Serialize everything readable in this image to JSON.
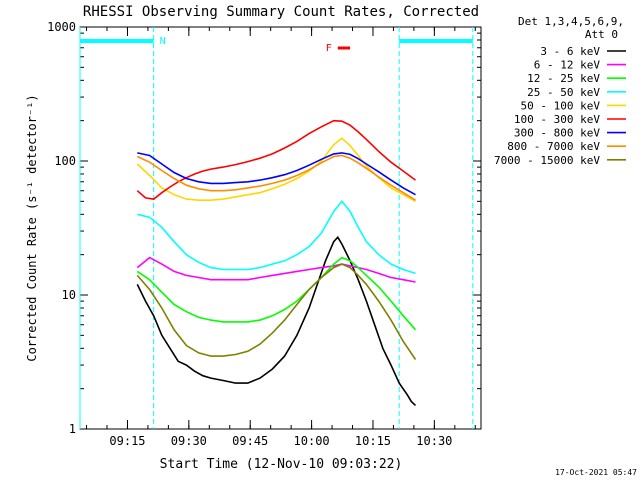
{
  "chart_data": {
    "type": "line",
    "title": "RHESSI Observing Summary Count Rates, Corrected",
    "xlabel": "Start Time (12-Nov-10 09:03:22)",
    "ylabel": "Corrected Count Rate (s⁻¹ detector⁻¹)",
    "yscale": "log",
    "ylim": [
      1,
      1000
    ],
    "xlim_minutes": [
      0,
      98
    ],
    "x_ticks": [
      {
        "label": "09:15",
        "minutes": 11.6
      },
      {
        "label": "09:30",
        "minutes": 26.6
      },
      {
        "label": "09:45",
        "minutes": 41.6
      },
      {
        "label": "10:00",
        "minutes": 56.6
      },
      {
        "label": "10:15",
        "minutes": 71.6
      },
      {
        "label": "10:30",
        "minutes": 86.6
      }
    ],
    "y_ticks": [
      {
        "label": "1",
        "value": 1
      },
      {
        "label": "10",
        "value": 10
      },
      {
        "label": "100",
        "value": 100
      },
      {
        "label": "1000",
        "value": 1000
      }
    ],
    "legend_header": [
      "Det 1,3,4,5,6,9,",
      "Att 0"
    ],
    "legend_placement": "right",
    "annotations": [
      {
        "label": "N",
        "color": "#00ffff"
      },
      {
        "label": "F",
        "color": "#ff0000"
      }
    ],
    "night_intervals_minutes": [
      [
        0,
        18
      ],
      [
        78,
        96
      ]
    ],
    "flare_interval_minutes": [
      63,
      66
    ],
    "timestamp": "17-Oct-2021 05:47",
    "series": [
      {
        "name": "3 - 6 keV",
        "color": "#000000",
        "x": [
          14,
          16,
          18,
          20,
          22,
          24,
          26,
          28,
          30,
          32,
          35,
          38,
          41,
          44,
          47,
          50,
          53,
          56,
          58,
          60,
          62,
          63,
          64,
          66,
          68,
          70,
          72,
          74,
          76,
          78,
          80,
          81,
          82
        ],
        "y": [
          12,
          9,
          7,
          5,
          4,
          3.2,
          3,
          2.7,
          2.5,
          2.4,
          2.3,
          2.2,
          2.2,
          2.4,
          2.8,
          3.5,
          5,
          8,
          12,
          18,
          25,
          27,
          24,
          18,
          13,
          9,
          6,
          4,
          3,
          2.2,
          1.8,
          1.6,
          1.5
        ]
      },
      {
        "name": "6 - 12 keV",
        "color": "#ff00ff",
        "x": [
          14,
          17,
          20,
          23,
          26,
          29,
          32,
          35,
          38,
          41,
          44,
          47,
          50,
          53,
          56,
          59,
          62,
          64,
          66,
          68,
          70,
          73,
          76,
          79,
          82
        ],
        "y": [
          16,
          19,
          17,
          15,
          14,
          13.5,
          13,
          13,
          13,
          13,
          13.5,
          14,
          14.5,
          15,
          15.5,
          16,
          16.5,
          17,
          16.5,
          16,
          15.5,
          14.5,
          13.5,
          13,
          12.5
        ]
      },
      {
        "name": "12 - 25 keV",
        "color": "#00ff00",
        "x": [
          14,
          17,
          20,
          23,
          26,
          29,
          32,
          35,
          38,
          41,
          44,
          47,
          50,
          53,
          56,
          59,
          62,
          64,
          66,
          68,
          70,
          73,
          76,
          79,
          82
        ],
        "y": [
          15,
          13,
          10.5,
          8.5,
          7.5,
          6.8,
          6.5,
          6.3,
          6.3,
          6.3,
          6.5,
          7,
          7.8,
          9,
          11,
          13.5,
          17,
          19,
          18,
          16,
          14,
          11.5,
          9,
          7,
          5.5
        ]
      },
      {
        "name": "25 - 50 keV",
        "color": "#00ffff",
        "x": [
          14,
          17,
          20,
          23,
          26,
          29,
          32,
          35,
          38,
          41,
          44,
          47,
          50,
          53,
          56,
          59,
          62,
          64,
          66,
          68,
          70,
          73,
          76,
          79,
          82
        ],
        "y": [
          40,
          38,
          32,
          25,
          20,
          17.5,
          16,
          15.5,
          15.5,
          15.5,
          16,
          17,
          18,
          20,
          23,
          29,
          42,
          50,
          42,
          32,
          25,
          20,
          17,
          15.5,
          14.5
        ]
      },
      {
        "name": "50 - 100 keV",
        "color": "#ffd700",
        "x": [
          14,
          17,
          20,
          23,
          26,
          29,
          32,
          35,
          38,
          41,
          44,
          47,
          50,
          53,
          56,
          59,
          62,
          64,
          66,
          68,
          70,
          73,
          76,
          79,
          82
        ],
        "y": [
          95,
          78,
          63,
          56,
          52,
          51,
          51,
          52,
          54,
          56,
          58,
          62,
          67,
          74,
          84,
          100,
          132,
          148,
          130,
          110,
          92,
          75,
          63,
          56,
          50
        ]
      },
      {
        "name": "100 - 300 keV",
        "color": "#ff0000",
        "x": [
          14,
          16,
          18,
          20,
          22,
          24,
          26,
          28,
          30,
          32,
          35,
          38,
          41,
          44,
          47,
          50,
          53,
          56,
          59,
          62,
          64,
          66,
          68,
          70,
          73,
          76,
          79,
          82
        ],
        "y": [
          60,
          53,
          52,
          58,
          64,
          70,
          75,
          80,
          84,
          87,
          90,
          94,
          99,
          105,
          113,
          125,
          140,
          160,
          180,
          200,
          198,
          185,
          165,
          145,
          118,
          98,
          84,
          72
        ]
      },
      {
        "name": "300 - 800 keV",
        "color": "#0000ff",
        "x": [
          14,
          17,
          20,
          23,
          26,
          29,
          32,
          35,
          38,
          41,
          44,
          47,
          50,
          53,
          56,
          59,
          62,
          64,
          66,
          68,
          70,
          73,
          76,
          79,
          82
        ],
        "y": [
          115,
          110,
          95,
          82,
          74,
          70,
          68,
          68,
          69,
          70,
          72,
          75,
          79,
          85,
          93,
          103,
          113,
          115,
          112,
          104,
          95,
          83,
          72,
          63,
          56
        ]
      },
      {
        "name": "800 - 7000 keV",
        "color": "#ff8c00",
        "x": [
          14,
          17,
          20,
          23,
          26,
          29,
          32,
          35,
          38,
          41,
          44,
          47,
          50,
          53,
          56,
          59,
          62,
          64,
          66,
          68,
          70,
          73,
          76,
          79,
          82
        ],
        "y": [
          108,
          98,
          85,
          74,
          66,
          62,
          60,
          60,
          61,
          63,
          65,
          68,
          72,
          78,
          86,
          97,
          108,
          110,
          105,
          97,
          88,
          76,
          66,
          58,
          51
        ]
      },
      {
        "name": "7000 - 15000 keV",
        "color": "#808000",
        "x": [
          14,
          17,
          20,
          23,
          26,
          29,
          32,
          35,
          38,
          41,
          44,
          47,
          50,
          53,
          56,
          59,
          62,
          64,
          66,
          68,
          70,
          73,
          76,
          79,
          82
        ],
        "y": [
          14,
          11,
          8,
          5.5,
          4.2,
          3.7,
          3.5,
          3.5,
          3.6,
          3.8,
          4.3,
          5.2,
          6.5,
          8.5,
          11,
          13.5,
          16,
          17,
          16,
          14,
          12,
          9,
          6.5,
          4.5,
          3.3
        ]
      }
    ]
  }
}
